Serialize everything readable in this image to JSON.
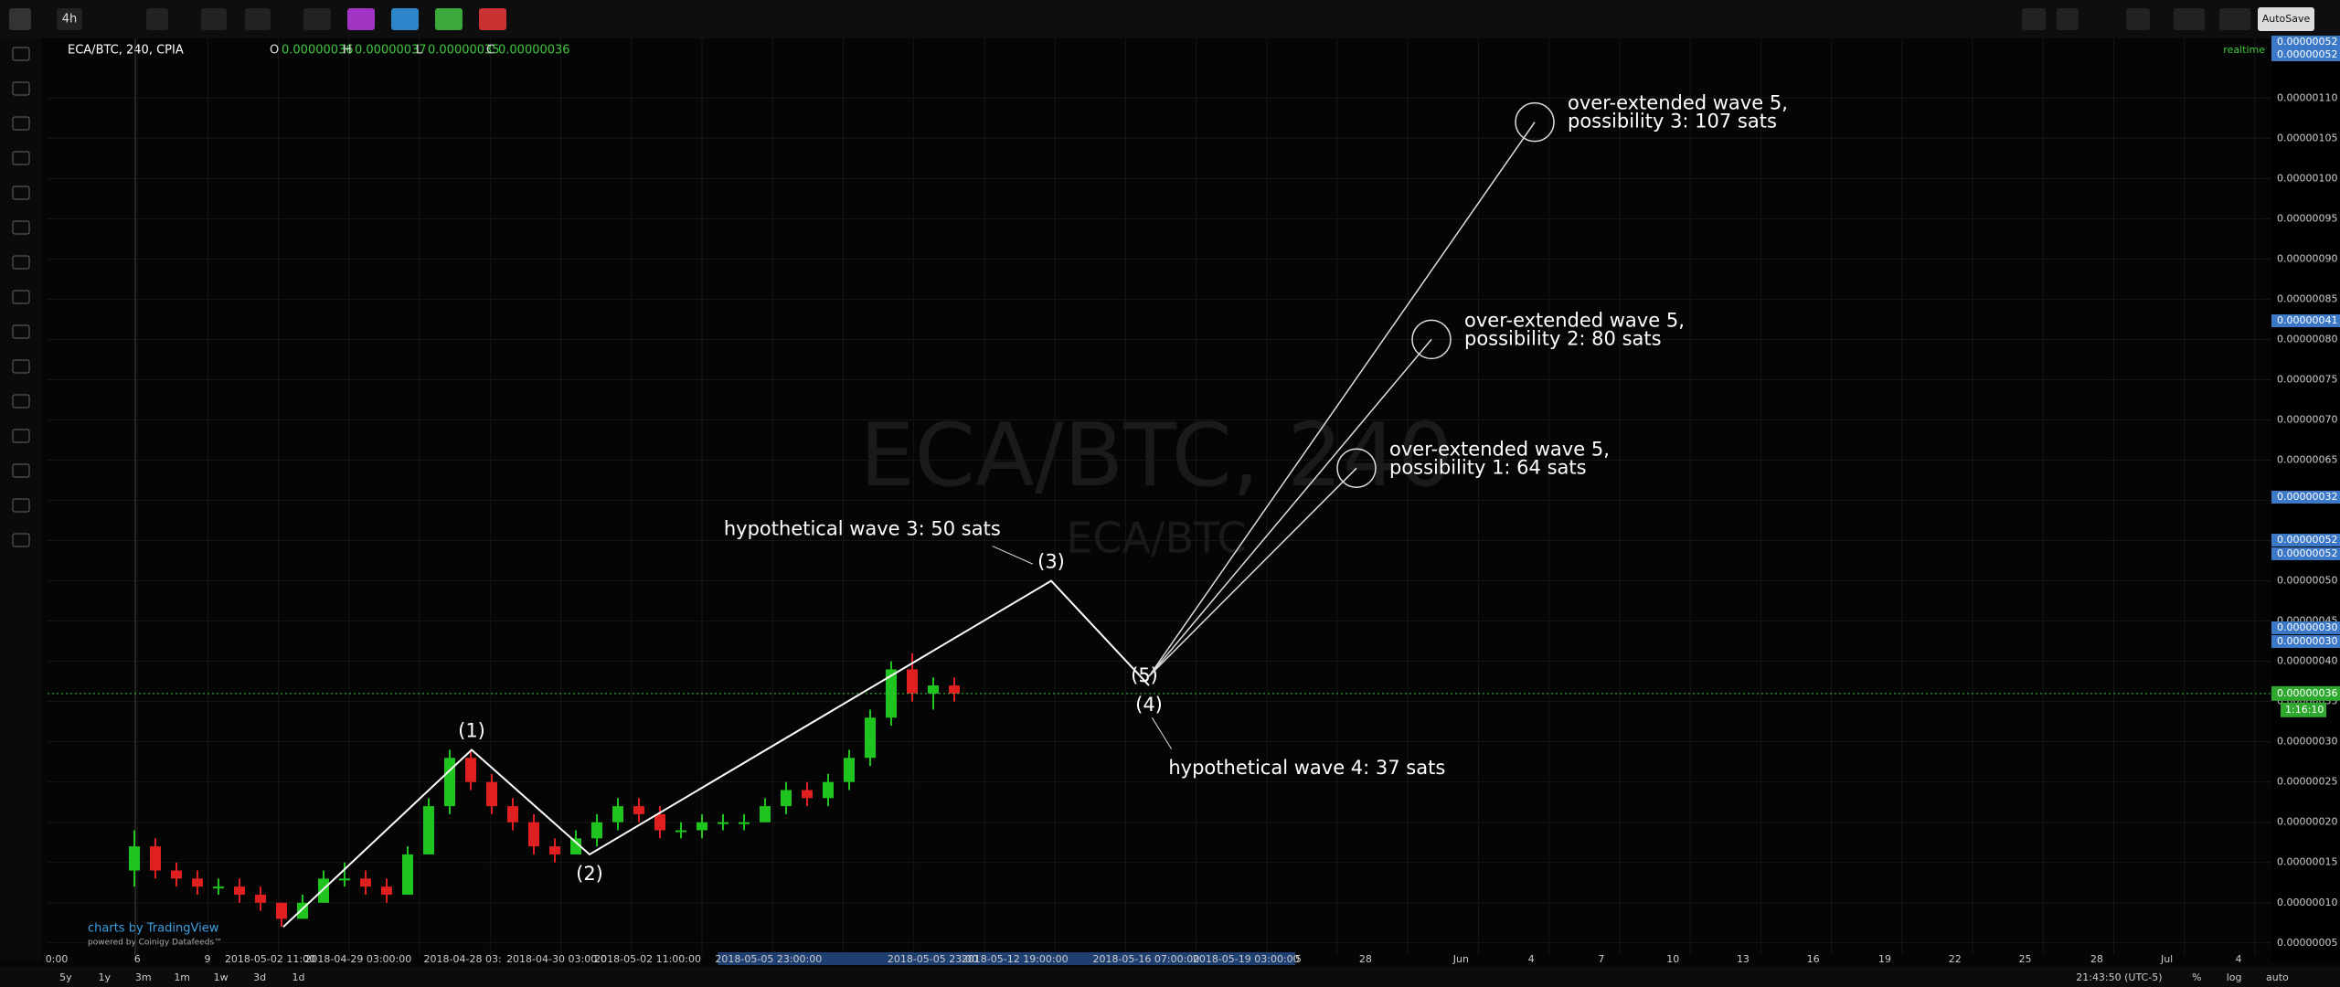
{
  "toolbar": {
    "interval": "4h",
    "autosave": "AutoSave"
  },
  "header": {
    "symbol": "ECA/BTC, 240, CPIA",
    "o_label": "O",
    "o": "0.00000036",
    "h_label": "H",
    "h": "0.00000037",
    "l_label": "L",
    "l": "0.00000035",
    "c_label": "C",
    "c": "0.00000036",
    "status": "realtime"
  },
  "watermark": {
    "main": "ECA/BTC, 240",
    "sub": "ECA/BTC"
  },
  "price_axis": {
    "ylim": [
      3.5e-08,
      1.148e-06
    ],
    "ticks": [
      {
        "value": 5e-08,
        "label": "0.00000005"
      },
      {
        "value": 1e-07,
        "label": "0.00000010"
      },
      {
        "value": 1.5e-07,
        "label": "0.00000015"
      },
      {
        "value": 2e-07,
        "label": "0.00000020"
      },
      {
        "value": 2.5e-07,
        "label": "0.00000025"
      },
      {
        "value": 3e-07,
        "label": "0.00000030"
      },
      {
        "value": 3.5e-07,
        "label": "0.00000035"
      },
      {
        "value": 4e-07,
        "label": "0.00000040"
      },
      {
        "value": 4.5e-07,
        "label": "0.00000045"
      },
      {
        "value": 5e-07,
        "label": "0.00000050"
      },
      {
        "value": 5.5e-07,
        "label": "0.00000055"
      },
      {
        "value": 6e-07,
        "label": "0.00000060"
      },
      {
        "value": 6.5e-07,
        "label": "0.00000065"
      },
      {
        "value": 7e-07,
        "label": "0.00000070"
      },
      {
        "value": 7.5e-07,
        "label": "0.00000075"
      },
      {
        "value": 8e-07,
        "label": "0.00000080"
      },
      {
        "value": 8.5e-07,
        "label": "0.00000085"
      },
      {
        "value": 9e-07,
        "label": "0.00000090"
      },
      {
        "value": 9.5e-07,
        "label": "0.00000095"
      },
      {
        "value": 1e-06,
        "label": "0.00000100"
      },
      {
        "value": 1.05e-06,
        "label": "0.00000105"
      },
      {
        "value": 1.1e-06,
        "label": "0.00000110"
      }
    ],
    "tags": [
      "0.00000052",
      "0.00000052",
      "0.00000041",
      "0.00000032",
      "0.00000052",
      "0.00000052",
      "0.00000030",
      "0.00000030"
    ],
    "countdown": "1:16:10"
  },
  "last_price": {
    "value": 3.6e-07,
    "label": "0.00000036"
  },
  "time_axis": {
    "labels": [
      "0:00",
      "6",
      "9",
      "2018-05-02 11:00",
      "2018-04-29 03:00:00",
      "2018-04-28 03:",
      "2018-04-30 03:00:0",
      "2018-05-02 11:00:00",
      "2018-05-05 23:00:00",
      "2018-05-05 23:00",
      "2018-05-12 19:00:00",
      "2018-05-16 07:00:00",
      "2018-05-19 03:00:00",
      "5",
      "28",
      "Jun",
      "4",
      "7",
      "10",
      "13",
      "16",
      "19",
      "22",
      "25",
      "28",
      "Jul",
      "4"
    ]
  },
  "candles": [
    [
      1.4e-07,
      1.9e-07,
      1.2e-07,
      1.7e-07
    ],
    [
      1.7e-07,
      1.8e-07,
      1.3e-07,
      1.4e-07
    ],
    [
      1.4e-07,
      1.5e-07,
      1.2e-07,
      1.3e-07
    ],
    [
      1.3e-07,
      1.4e-07,
      1.1e-07,
      1.2e-07
    ],
    [
      1.2e-07,
      1.3e-07,
      1.1e-07,
      1.2e-07
    ],
    [
      1.2e-07,
      1.3e-07,
      1e-07,
      1.1e-07
    ],
    [
      1.1e-07,
      1.2e-07,
      9e-08,
      1e-07
    ],
    [
      1e-07,
      1e-07,
      7e-08,
      8e-08
    ],
    [
      8e-08,
      1.1e-07,
      8e-08,
      1e-07
    ],
    [
      1e-07,
      1.4e-07,
      1e-07,
      1.3e-07
    ],
    [
      1.3e-07,
      1.5e-07,
      1.2e-07,
      1.3e-07
    ],
    [
      1.3e-07,
      1.4e-07,
      1.1e-07,
      1.2e-07
    ],
    [
      1.2e-07,
      1.3e-07,
      1e-07,
      1.1e-07
    ],
    [
      1.1e-07,
      1.7e-07,
      1.1e-07,
      1.6e-07
    ],
    [
      1.6e-07,
      2.3e-07,
      1.6e-07,
      2.2e-07
    ],
    [
      2.2e-07,
      2.9e-07,
      2.1e-07,
      2.8e-07
    ],
    [
      2.8e-07,
      2.9e-07,
      2.4e-07,
      2.5e-07
    ],
    [
      2.5e-07,
      2.6e-07,
      2.1e-07,
      2.2e-07
    ],
    [
      2.2e-07,
      2.3e-07,
      1.9e-07,
      2e-07
    ],
    [
      2e-07,
      2.1e-07,
      1.6e-07,
      1.7e-07
    ],
    [
      1.7e-07,
      1.8e-07,
      1.5e-07,
      1.6e-07
    ],
    [
      1.6e-07,
      1.9e-07,
      1.6e-07,
      1.8e-07
    ],
    [
      1.8e-07,
      2.1e-07,
      1.7e-07,
      2e-07
    ],
    [
      2e-07,
      2.3e-07,
      1.9e-07,
      2.2e-07
    ],
    [
      2.2e-07,
      2.3e-07,
      2e-07,
      2.1e-07
    ],
    [
      2.1e-07,
      2.2e-07,
      1.8e-07,
      1.9e-07
    ],
    [
      1.9e-07,
      2e-07,
      1.8e-07,
      1.9e-07
    ],
    [
      1.9e-07,
      2.1e-07,
      1.8e-07,
      2e-07
    ],
    [
      2e-07,
      2.1e-07,
      1.9e-07,
      2e-07
    ],
    [
      2e-07,
      2.1e-07,
      1.9e-07,
      2e-07
    ],
    [
      2e-07,
      2.3e-07,
      2e-07,
      2.2e-07
    ],
    [
      2.2e-07,
      2.5e-07,
      2.1e-07,
      2.4e-07
    ],
    [
      2.4e-07,
      2.5e-07,
      2.2e-07,
      2.3e-07
    ],
    [
      2.3e-07,
      2.6e-07,
      2.2e-07,
      2.5e-07
    ],
    [
      2.5e-07,
      2.9e-07,
      2.4e-07,
      2.8e-07
    ],
    [
      2.8e-07,
      3.4e-07,
      2.7e-07,
      3.3e-07
    ],
    [
      3.3e-07,
      4e-07,
      3.2e-07,
      3.9e-07
    ],
    [
      3.9e-07,
      4.1e-07,
      3.5e-07,
      3.6e-07
    ],
    [
      3.6e-07,
      3.8e-07,
      3.4e-07,
      3.7e-07
    ],
    [
      3.7e-07,
      3.8e-07,
      3.5e-07,
      3.6e-07
    ]
  ],
  "waves": {
    "labels": [
      null,
      "(1)",
      "(2)",
      "(3)",
      "(4)"
    ],
    "prices": [
      7e-08,
      2.9e-07,
      1.6e-07,
      5e-07,
      3.7e-07
    ],
    "wave5_label": "(5)",
    "wave3_note": "hypothetical wave 3: 50 sats",
    "wave4_note": "hypothetical wave 4: 37 sats",
    "targets": [
      {
        "price": 6.4e-07,
        "text": [
          "over-extended wave 5,",
          "possibility 1: 64 sats"
        ]
      },
      {
        "price": 8e-07,
        "text": [
          "over-extended wave 5,",
          "possibility 2: 80 sats"
        ]
      },
      {
        "price": 1.07e-06,
        "text": [
          "over-extended wave 5,",
          "possibility 3: 107 sats"
        ]
      }
    ]
  },
  "branding": {
    "brand": "charts by TradingView",
    "powered": "powered by Coinigy Datafeeds™"
  },
  "bottom_bar": {
    "ranges": [
      "5y",
      "1y",
      "3m",
      "1m",
      "1w",
      "3d",
      "1d"
    ],
    "clock": "21:43:50 (UTC-5)",
    "scale_buttons": [
      "%",
      "log",
      "auto"
    ]
  }
}
